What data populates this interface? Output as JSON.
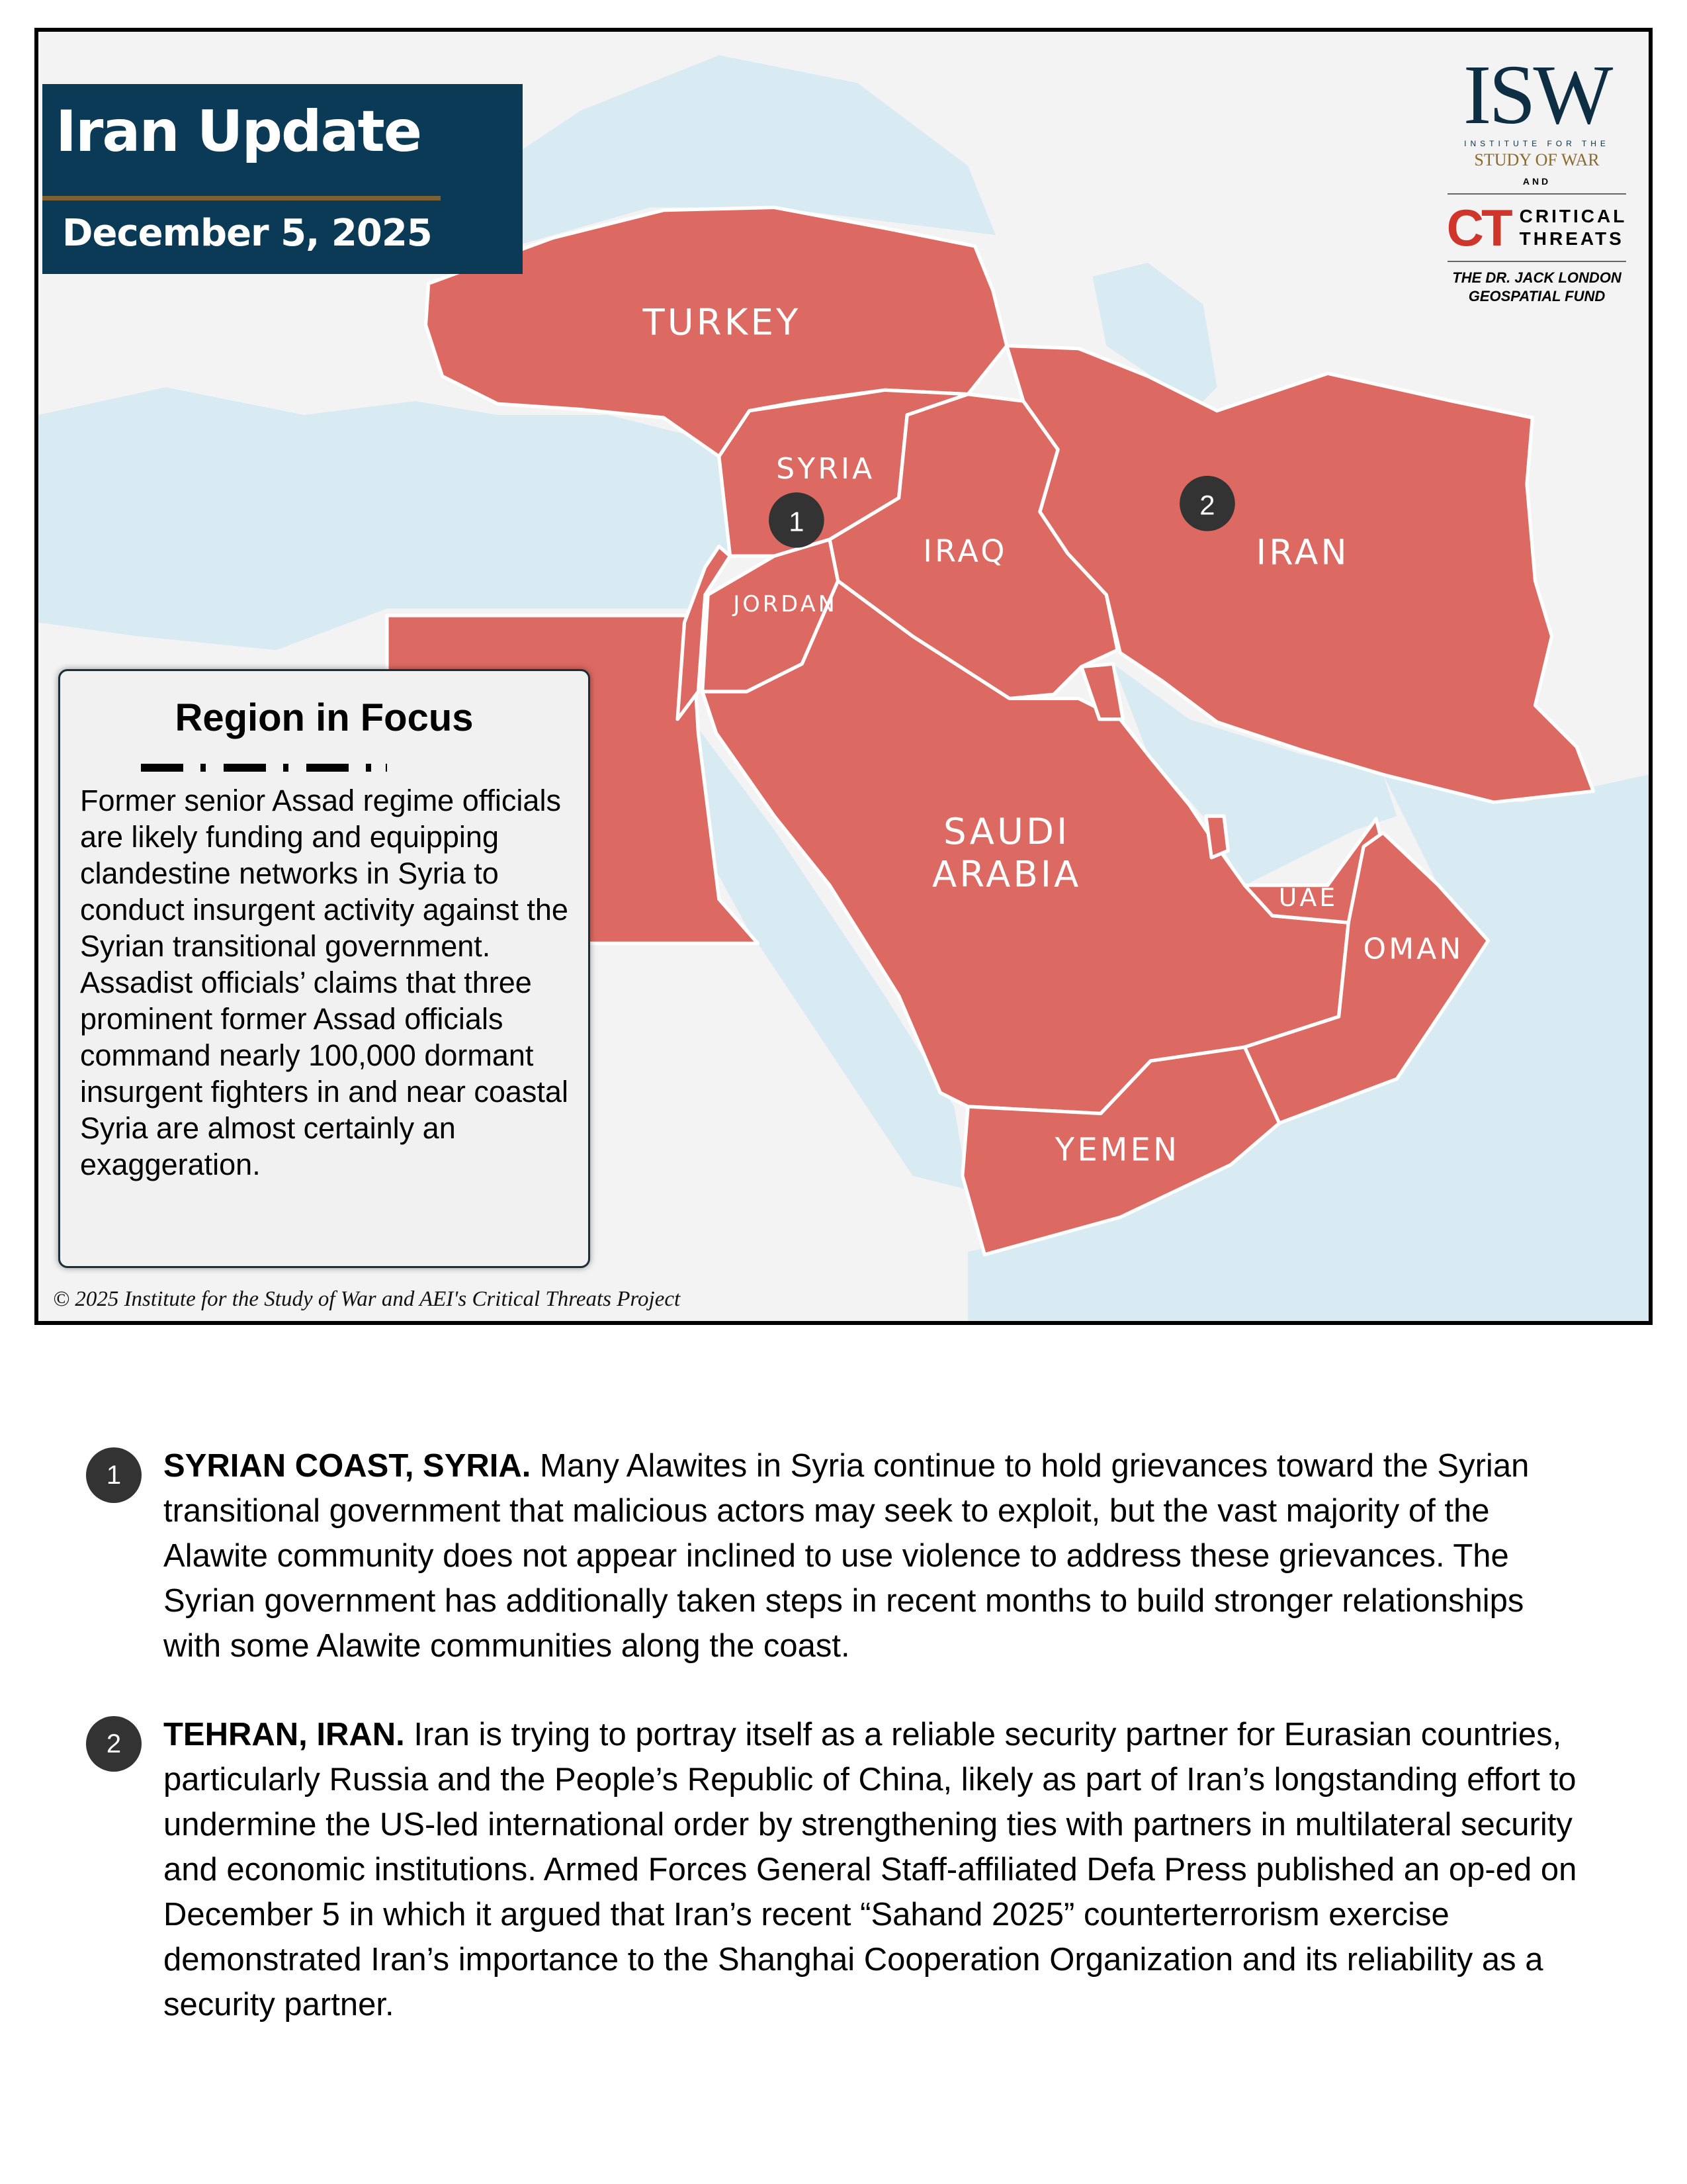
{
  "header": {
    "title": "Iran Update",
    "date": "December 5, 2025"
  },
  "logo": {
    "isw": "ISW",
    "isw_sub1": "INSTITUTE FOR THE",
    "isw_sub2": "STUDY OF WAR",
    "and": "AND",
    "ct_mark": "CT",
    "ct_line1": "CRITICAL",
    "ct_line2": "THREATS",
    "fund_line1": "THE DR. JACK LONDON",
    "fund_line2": "GEOSPATIAL FUND"
  },
  "map": {
    "colors": {
      "focus_country": "#dd6a62",
      "water": "#d8ebf2",
      "land": "#f3f3f3",
      "border": "#ffffff",
      "title_bg": "#0b3a57",
      "accent": "#7e6033"
    },
    "labels": {
      "turkey": "TURKEY",
      "syria": "SYRIA",
      "iraq": "IRAQ",
      "iran": "IRAN",
      "jordan": "JORDAN",
      "saudi_1": "SAUDI",
      "saudi_2": "ARABIA",
      "uae": "UAE",
      "oman": "OMAN",
      "yemen": "YEMEN"
    },
    "markers": [
      "1",
      "2"
    ],
    "copyright": "© 2025 Institute for the Study of War and AEI's Critical Threats Project"
  },
  "region_in_focus": {
    "title": "Region in Focus",
    "text": "Former senior Assad regime officials are likely funding and equipping clandestine networks in Syria to conduct insurgent activity against the Syrian transitional government. Assadist officials’ claims that three prominent former Assad officials command nearly 100,000 dormant insurgent fighters in and near coastal Syria are almost certainly an exaggeration."
  },
  "items": [
    {
      "number": "1",
      "heading": "SYRIAN COAST, SYRIA.",
      "text": " Many Alawites in Syria continue to hold grievances toward the Syrian transitional government that malicious actors may seek to exploit, but the vast majority of the Alawite community does not appear inclined to use violence to address these grievances. The Syrian government has additionally taken steps in recent months to build stronger relationships with some Alawite communities along the coast."
    },
    {
      "number": "2",
      "heading": "TEHRAN, IRAN.",
      "text": " Iran is trying to portray itself as a reliable security partner for Eurasian countries, particularly Russia and the People’s Republic of China, likely as part of Iran’s longstanding effort to undermine the US-led international order by strengthening ties with partners in multilateral security and economic institutions. Armed Forces General Staff-affiliated Defa Press published an op-ed on December 5 in which it argued that Iran’s recent “Sahand 2025” counterterrorism exercise demonstrated Iran’s importance to the Shanghai Cooperation Organization and its reliability as a security partner."
    }
  ]
}
